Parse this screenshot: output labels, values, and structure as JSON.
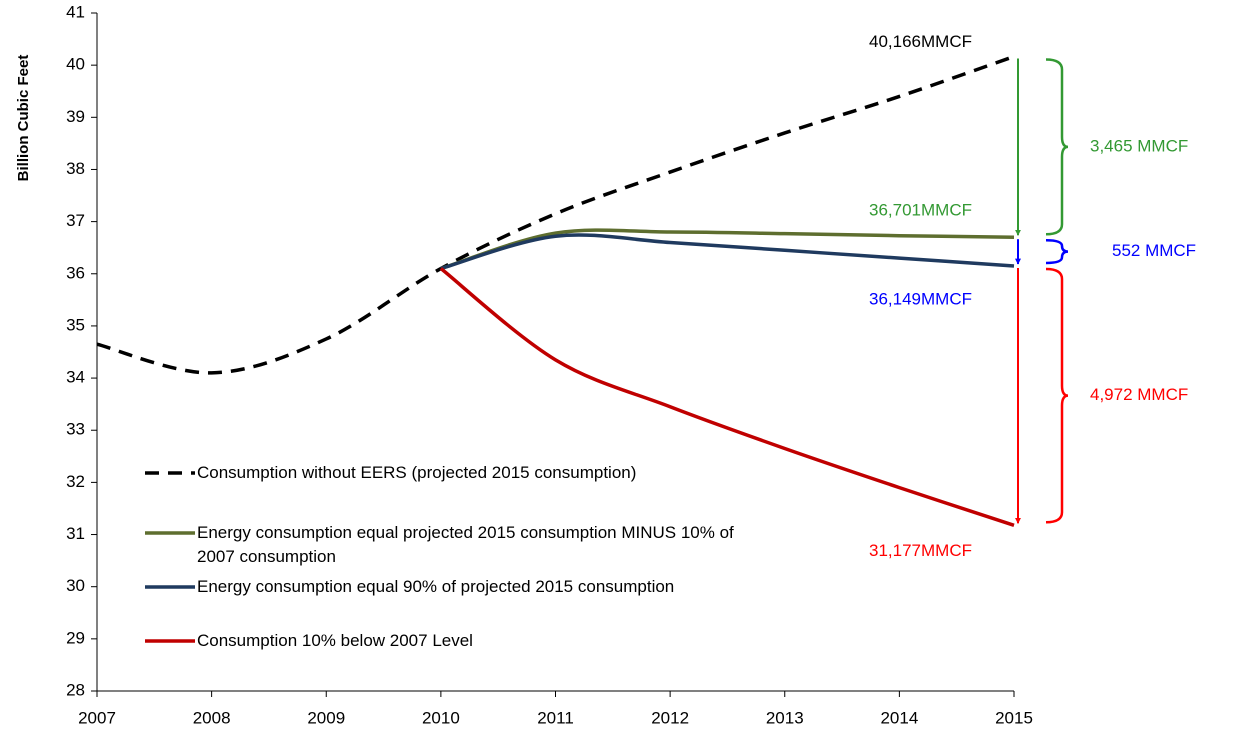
{
  "chart_data": {
    "type": "line",
    "y_label": "Billion Cubic Feet",
    "x": [
      2007,
      2008,
      2009,
      2010,
      2011,
      2012,
      2013,
      2014,
      2015
    ],
    "xlim": [
      2007,
      2015
    ],
    "xticks": [
      2007,
      2008,
      2009,
      2010,
      2011,
      2012,
      2013,
      2014,
      2015
    ],
    "ylim": [
      28,
      41
    ],
    "yticks": [
      28,
      29,
      30,
      31,
      32,
      33,
      34,
      35,
      36,
      37,
      38,
      39,
      40,
      41
    ],
    "grid": false,
    "legend": "lower left",
    "series": [
      {
        "name": "Consumption without EERS (projected 2015 consumption)",
        "color": "#000000",
        "dashed": true,
        "values": [
          34.65,
          34.1,
          34.75,
          36.1,
          37.15,
          37.95,
          38.7,
          39.4,
          40.166
        ]
      },
      {
        "name": "Energy consumption equal projected 2015 consumption MINUS 10% of 2007 consumption",
        "color": "#5e6e2f",
        "dashed": false,
        "values": [
          null,
          null,
          null,
          36.1,
          36.78,
          36.8,
          36.77,
          36.73,
          36.701
        ]
      },
      {
        "name": "Energy consumption equal 90% of projected 2015 consumption",
        "color": "#1f3a5f",
        "dashed": false,
        "values": [
          null,
          null,
          null,
          36.1,
          36.72,
          36.6,
          36.45,
          36.3,
          36.149
        ]
      },
      {
        "name": "Consumption 10% below 2007 Level",
        "color": "#c00000",
        "dashed": false,
        "values": [
          null,
          null,
          null,
          36.1,
          34.35,
          33.45,
          32.65,
          31.9,
          31.177
        ]
      }
    ],
    "annotations": [
      {
        "text": "40,166MMCF",
        "color": "#000000"
      },
      {
        "text": "36,701MMCF",
        "color": "#339933"
      },
      {
        "text": "36,149MMCF",
        "color": "#0000ff"
      },
      {
        "text": "31,177MMCF",
        "color": "#ff0000"
      },
      {
        "text": "3,465 MMCF",
        "color": "#339933"
      },
      {
        "text": "552 MMCF",
        "color": "#0000ff"
      },
      {
        "text": "4,972 MMCF",
        "color": "#ff0000"
      }
    ]
  }
}
